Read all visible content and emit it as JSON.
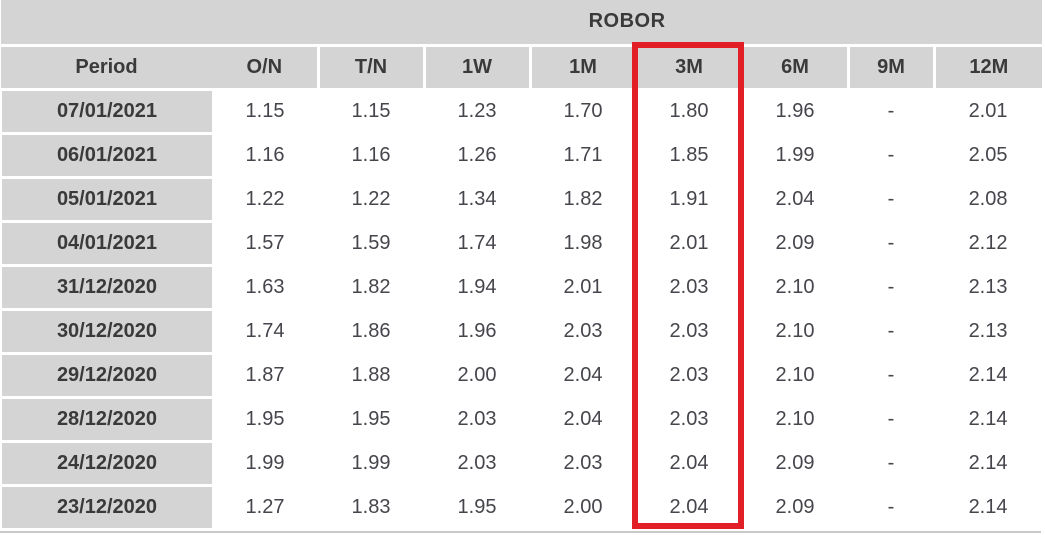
{
  "chart_data": {
    "type": "table",
    "title": "ROBOR",
    "columns": [
      "Period",
      "O/N",
      "T/N",
      "1W",
      "1M",
      "3M",
      "6M",
      "9M",
      "12M"
    ],
    "rows": [
      [
        "07/01/2021",
        "1.15",
        "1.15",
        "1.23",
        "1.70",
        "1.80",
        "1.96",
        "-",
        "2.01"
      ],
      [
        "06/01/2021",
        "1.16",
        "1.16",
        "1.26",
        "1.71",
        "1.85",
        "1.99",
        "-",
        "2.05"
      ],
      [
        "05/01/2021",
        "1.22",
        "1.22",
        "1.34",
        "1.82",
        "1.91",
        "2.04",
        "-",
        "2.08"
      ],
      [
        "04/01/2021",
        "1.57",
        "1.59",
        "1.74",
        "1.98",
        "2.01",
        "2.09",
        "-",
        "2.12"
      ],
      [
        "31/12/2020",
        "1.63",
        "1.82",
        "1.94",
        "2.01",
        "2.03",
        "2.10",
        "-",
        "2.13"
      ],
      [
        "30/12/2020",
        "1.74",
        "1.86",
        "1.96",
        "2.03",
        "2.03",
        "2.10",
        "-",
        "2.13"
      ],
      [
        "29/12/2020",
        "1.87",
        "1.88",
        "2.00",
        "2.04",
        "2.03",
        "2.10",
        "-",
        "2.14"
      ],
      [
        "28/12/2020",
        "1.95",
        "1.95",
        "2.03",
        "2.04",
        "2.03",
        "2.10",
        "-",
        "2.14"
      ],
      [
        "24/12/2020",
        "1.99",
        "1.99",
        "2.03",
        "2.03",
        "2.04",
        "2.09",
        "-",
        "2.14"
      ],
      [
        "23/12/2020",
        "1.27",
        "1.83",
        "1.95",
        "2.00",
        "2.04",
        "2.09",
        "-",
        "2.14"
      ]
    ],
    "highlighted_column": "3M",
    "missing_value_marker": "-",
    "layout": {
      "grid": false,
      "legend": "none",
      "header_background": "gray band",
      "body_background": "white"
    }
  },
  "colors": {
    "cell_gray": "#d4d4d4",
    "header_text": "#3a3a3a",
    "value_text": "#45454c",
    "highlight_red": "#e21e26",
    "bottom_rule_gray": "#c9c9c9",
    "row_gap_white": "#ffffff"
  }
}
